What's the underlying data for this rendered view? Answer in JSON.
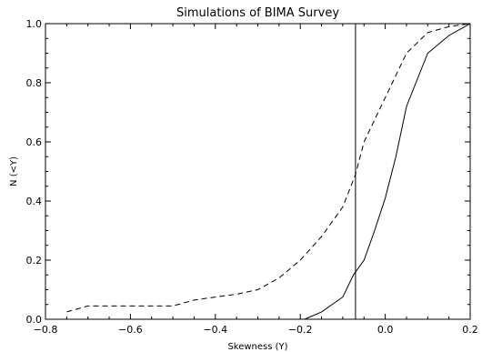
{
  "chart_data": {
    "type": "line",
    "title": "Simulations of BIMA Survey",
    "xlabel": "Skewness (Y)",
    "ylabel": "N (<Y)",
    "xlim": [
      -0.8,
      0.2
    ],
    "ylim": [
      0.0,
      1.0
    ],
    "x_ticks": [
      -0.8,
      -0.6,
      -0.4,
      -0.2,
      0.0,
      0.2
    ],
    "x_tick_labels": [
      "−0.8",
      "−0.6",
      "−0.4",
      "−0.2",
      "0.0",
      "0.2"
    ],
    "y_ticks": [
      0.0,
      0.2,
      0.4,
      0.6,
      0.8,
      1.0
    ],
    "y_tick_labels": [
      "0.0",
      "0.2",
      "0.4",
      "0.6",
      "0.8",
      "1.0"
    ],
    "grid": false,
    "colors": {
      "line": "#000000",
      "background": "#ffffff"
    },
    "series": [
      {
        "style": "solid",
        "x": [
          -0.19,
          -0.15,
          -0.1,
          -0.075,
          -0.05,
          -0.025,
          0.0,
          0.025,
          0.05,
          0.1,
          0.15,
          0.2
        ],
        "y": [
          0.0,
          0.025,
          0.075,
          0.15,
          0.2,
          0.3,
          0.41,
          0.55,
          0.72,
          0.9,
          0.96,
          1.0
        ]
      },
      {
        "style": "dashed",
        "x": [
          -0.75,
          -0.7,
          -0.65,
          -0.6,
          -0.55,
          -0.5,
          -0.45,
          -0.4,
          -0.35,
          -0.3,
          -0.25,
          -0.2,
          -0.15,
          -0.1,
          -0.07,
          -0.05,
          0.0,
          0.05,
          0.1,
          0.15,
          0.2
        ],
        "y": [
          0.025,
          0.045,
          0.045,
          0.045,
          0.045,
          0.045,
          0.065,
          0.075,
          0.085,
          0.1,
          0.14,
          0.2,
          0.28,
          0.38,
          0.49,
          0.6,
          0.75,
          0.9,
          0.97,
          0.99,
          1.0
        ]
      }
    ],
    "vertical_lines": [
      {
        "x": -0.07,
        "style": "solid"
      }
    ]
  }
}
